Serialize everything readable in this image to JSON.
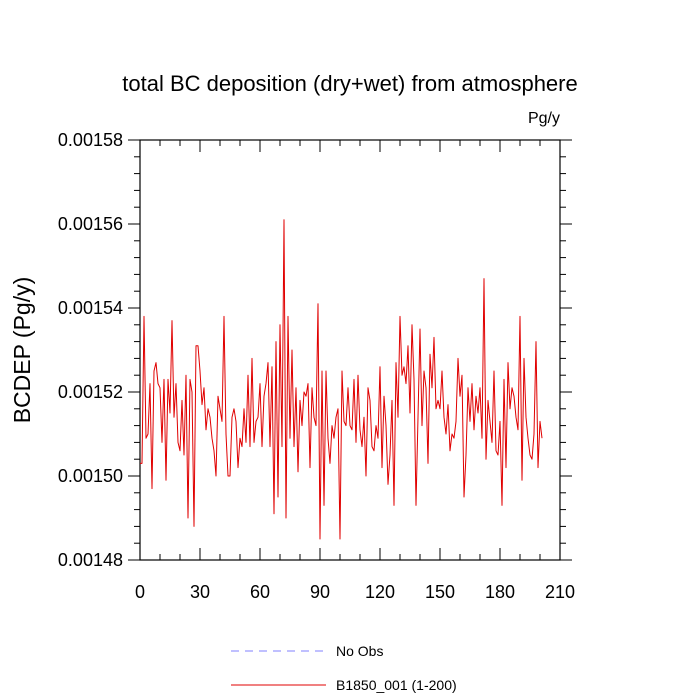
{
  "chart_data": {
    "type": "line",
    "title": "total BC deposition (dry+wet) from atmosphere",
    "units": "Pg/y",
    "ylabel": "BCDEP  (Pg/y)",
    "xlabel": "",
    "xlim": [
      0,
      210
    ],
    "ylim": [
      0.00148,
      0.00158
    ],
    "xticks": [
      0,
      30,
      60,
      90,
      120,
      150,
      180,
      210
    ],
    "xtick_labels": [
      "0",
      "30",
      "60",
      "90",
      "120",
      "150",
      "180",
      "210"
    ],
    "yticks": [
      0.00148,
      0.0015,
      0.00152,
      0.00154,
      0.00156,
      0.00158
    ],
    "ytick_labels": [
      "0.00148",
      "0.00150",
      "0.00152",
      "0.00154",
      "0.00156",
      "0.00158"
    ],
    "grid": false,
    "legend_position": "bottom",
    "legend": [
      {
        "name": "No Obs",
        "color": "#8080ff",
        "style": "dashed"
      },
      {
        "name": "B1850_001 (1-200)",
        "color": "#e00000",
        "style": "solid"
      }
    ],
    "series": [
      {
        "name": "B1850_001 (1-200)",
        "color": "#e00000",
        "x_start": 0,
        "x_step": 1,
        "values": [
          0.001503,
          0.001503,
          0.001538,
          0.001509,
          0.00151,
          0.001522,
          0.001497,
          0.001525,
          0.001527,
          0.001522,
          0.001521,
          0.001508,
          0.001523,
          0.001499,
          0.001523,
          0.001515,
          0.001537,
          0.001514,
          0.001522,
          0.001508,
          0.001506,
          0.001518,
          0.001505,
          0.001524,
          0.00149,
          0.001523,
          0.00152,
          0.001488,
          0.001531,
          0.001531,
          0.001525,
          0.001517,
          0.001521,
          0.001511,
          0.001516,
          0.001514,
          0.001509,
          0.001506,
          0.0015,
          0.001519,
          0.001516,
          0.001513,
          0.001538,
          0.00151,
          0.0015,
          0.0015,
          0.001514,
          0.001516,
          0.001513,
          0.001502,
          0.001509,
          0.001507,
          0.001516,
          0.001508,
          0.001524,
          0.001507,
          0.001528,
          0.001508,
          0.001513,
          0.001514,
          0.001522,
          0.001507,
          0.001519,
          0.001522,
          0.001527,
          0.001507,
          0.001526,
          0.001491,
          0.001532,
          0.001495,
          0.001536,
          0.001507,
          0.001561,
          0.00149,
          0.001538,
          0.001509,
          0.00153,
          0.001507,
          0.001521,
          0.001501,
          0.001518,
          0.001512,
          0.00152,
          0.001519,
          0.001522,
          0.001502,
          0.001521,
          0.001514,
          0.001512,
          0.001541,
          0.001485,
          0.001525,
          0.001493,
          0.001525,
          0.001509,
          0.001503,
          0.001512,
          0.001509,
          0.001514,
          0.001516,
          0.001485,
          0.001525,
          0.001513,
          0.001512,
          0.001521,
          0.001512,
          0.001511,
          0.001523,
          0.001508,
          0.001524,
          0.001511,
          0.001507,
          0.001514,
          0.0015,
          0.001521,
          0.001518,
          0.001507,
          0.001506,
          0.001512,
          0.001509,
          0.001526,
          0.001502,
          0.001519,
          0.001512,
          0.001498,
          0.001505,
          0.001518,
          0.001493,
          0.001527,
          0.001514,
          0.001538,
          0.001524,
          0.001526,
          0.001522,
          0.001531,
          0.001515,
          0.001536,
          0.001523,
          0.001493,
          0.001514,
          0.001535,
          0.001512,
          0.001525,
          0.001521,
          0.001503,
          0.001529,
          0.001521,
          0.001533,
          0.001516,
          0.001518,
          0.001516,
          0.001525,
          0.001514,
          0.00151,
          0.001517,
          0.001506,
          0.00151,
          0.001509,
          0.001513,
          0.001528,
          0.001519,
          0.001524,
          0.001495,
          0.001505,
          0.001521,
          0.001513,
          0.001522,
          0.001511,
          0.001519,
          0.001515,
          0.001521,
          0.001509,
          0.001547,
          0.001504,
          0.001518,
          0.001513,
          0.001508,
          0.001525,
          0.001506,
          0.001505,
          0.001513,
          0.001493,
          0.001523,
          0.001502,
          0.001527,
          0.001516,
          0.001521,
          0.001519,
          0.001514,
          0.001511,
          0.001538,
          0.001499,
          0.001528,
          0.001514,
          0.001509,
          0.001505,
          0.001504,
          0.00151,
          0.001532,
          0.001502,
          0.001513,
          0.001509
        ]
      }
    ]
  }
}
